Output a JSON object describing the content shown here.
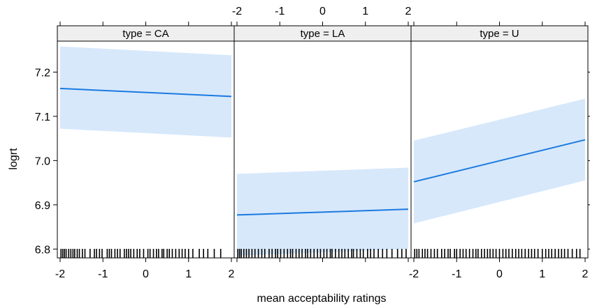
{
  "chart_data": {
    "type": "line",
    "layout": "trellis-3-panels",
    "xlabel": "mean acceptability ratings",
    "ylabel": "logrt",
    "xlim": [
      -2,
      2
    ],
    "ylim": [
      6.78,
      7.27
    ],
    "x_ticks": [
      "-2",
      "-1",
      "0",
      "1",
      "2"
    ],
    "y_ticks": [
      "6.8",
      "6.9",
      "7.0",
      "7.1",
      "7.2"
    ],
    "y_tick_values": [
      6.8,
      6.9,
      7.0,
      7.1,
      7.2
    ],
    "x_tick_values": [
      -2,
      -1,
      0,
      1,
      2
    ],
    "band_color": "#d7e8fb",
    "line_color": "#1a7ae0",
    "strip_color": "#efefef",
    "panels": [
      {
        "strip": "type = CA",
        "fit": {
          "x": [
            -2,
            2
          ],
          "y": [
            7.163,
            7.145
          ]
        },
        "band_upper": {
          "x": [
            -2,
            2
          ],
          "y": [
            7.258,
            7.238
          ]
        },
        "band_lower": {
          "x": [
            -2,
            2
          ],
          "y": [
            7.072,
            7.052
          ]
        },
        "rug": [
          -1.98,
          -1.94,
          -1.9,
          -1.86,
          -1.8,
          -1.75,
          -1.7,
          -1.66,
          -1.6,
          -1.55,
          -1.48,
          -1.42,
          -1.3,
          -1.2,
          -1.15,
          -1.08,
          -1.02,
          -0.9,
          -0.85,
          -0.8,
          -0.72,
          -0.66,
          -0.6,
          -0.5,
          -0.45,
          -0.4,
          -0.35,
          -0.28,
          -0.2,
          -0.14,
          -0.05,
          0.05,
          0.1,
          0.18,
          0.25,
          0.3,
          0.38,
          0.42,
          0.5,
          0.55,
          0.62,
          0.7,
          0.78,
          0.85,
          0.92,
          1.0,
          1.1,
          1.25,
          1.35,
          1.45,
          1.6,
          1.75
        ]
      },
      {
        "strip": "type = LA",
        "fit": {
          "x": [
            -2,
            2
          ],
          "y": [
            6.877,
            6.89
          ]
        },
        "band_upper": {
          "x": [
            -2,
            2
          ],
          "y": [
            6.97,
            6.984
          ]
        },
        "band_lower": {
          "x": [
            -2,
            2
          ],
          "y": [
            6.785,
            6.8
          ]
        },
        "rug": [
          -1.98,
          -1.94,
          -1.9,
          -1.84,
          -1.78,
          -1.72,
          -1.65,
          -1.58,
          -1.5,
          -1.42,
          -1.35,
          -1.25,
          -1.18,
          -1.1,
          -1.05,
          -0.98,
          -0.9,
          -0.82,
          -0.75,
          -0.7,
          -0.62,
          -0.55,
          -0.48,
          -0.4,
          -0.35,
          -0.28,
          -0.2,
          -0.12,
          -0.05,
          0.03,
          0.1,
          0.18,
          0.22,
          0.3,
          0.38,
          0.45,
          0.52,
          0.6,
          0.68,
          0.72,
          0.8,
          0.88,
          0.95,
          1.05,
          1.12,
          1.2,
          1.3,
          1.4,
          1.5,
          1.62,
          1.75,
          1.85,
          1.95
        ]
      },
      {
        "strip": "type = U",
        "fit": {
          "x": [
            -2,
            2
          ],
          "y": [
            6.952,
            7.047
          ]
        },
        "band_upper": {
          "x": [
            -2,
            2
          ],
          "y": [
            7.045,
            7.14
          ]
        },
        "band_lower": {
          "x": [
            -2,
            2
          ],
          "y": [
            6.858,
            6.955
          ]
        },
        "rug": [
          -1.98,
          -1.93,
          -1.88,
          -1.8,
          -1.74,
          -1.68,
          -1.6,
          -1.52,
          -1.45,
          -1.35,
          -1.28,
          -1.2,
          -1.15,
          -1.05,
          -1.0,
          -0.92,
          -0.85,
          -0.78,
          -0.7,
          -0.62,
          -0.55,
          -0.5,
          -0.42,
          -0.35,
          -0.28,
          -0.22,
          -0.15,
          -0.08,
          0.0,
          0.08,
          0.15,
          0.22,
          0.3,
          0.38,
          0.45,
          0.52,
          0.6,
          0.68,
          0.75,
          0.82,
          0.9,
          1.0,
          1.08,
          1.15,
          1.22,
          1.3,
          1.38,
          1.45,
          1.52,
          1.6,
          1.7,
          1.8,
          1.88
        ]
      }
    ]
  }
}
